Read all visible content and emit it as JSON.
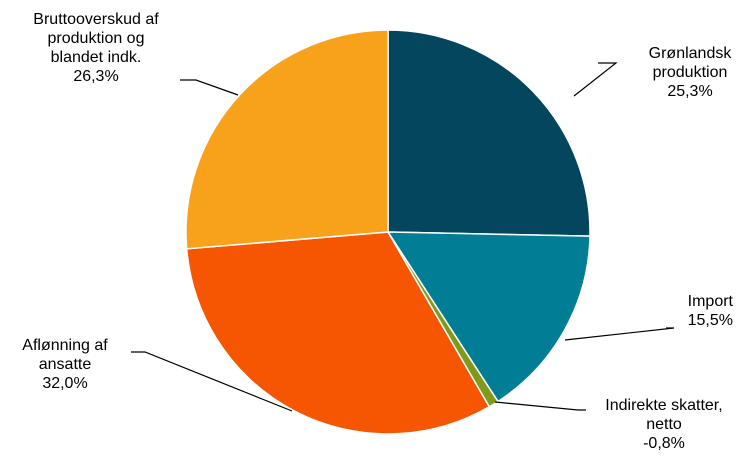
{
  "chart_data": {
    "type": "pie",
    "title": "",
    "start_angle_deg": 0,
    "direction": "clockwise",
    "legend": "none",
    "slices": [
      {
        "name": "Grønlandsk produktion",
        "label_lines": [
          "Grønlandsk",
          "produktion"
        ],
        "value_label": "25,3%",
        "value": 25.3,
        "color": "#04465D"
      },
      {
        "name": "Import",
        "label_lines": [
          "Import"
        ],
        "value_label": "15,5%",
        "value": 15.5,
        "color": "#017D95"
      },
      {
        "name": "Indirekte skatter, netto",
        "label_lines": [
          "Indirekte skatter,",
          "netto"
        ],
        "value_label": "-0,8%",
        "value": -0.8,
        "color": "#7F9A1A"
      },
      {
        "name": "Aflønning af ansatte",
        "label_lines": [
          "Aflønning af",
          "ansatte"
        ],
        "value_label": "32,0%",
        "value": 32.0,
        "color": "#F65502"
      },
      {
        "name": "Bruttooverskud af produktion og blandet indk.",
        "label_lines": [
          "Bruttooverskud af",
          "produktion og",
          "blandet indk."
        ],
        "value_label": "26,3%",
        "value": 26.3,
        "color": "#F8A21C"
      }
    ]
  }
}
